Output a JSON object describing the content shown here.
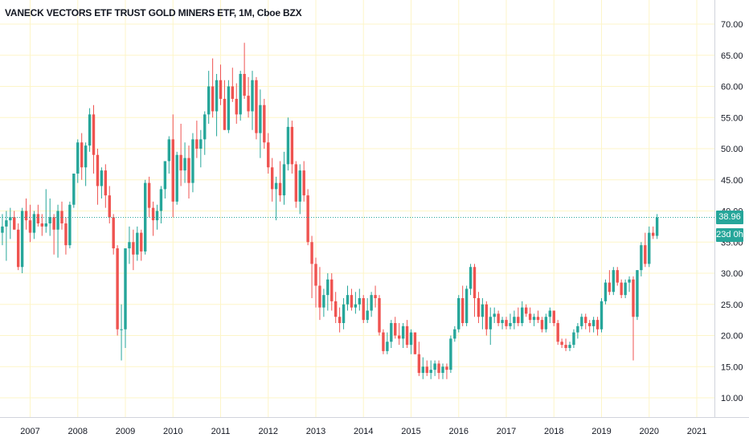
{
  "header": {
    "title": "VANECK VECTORS ETF TRUST GOLD MINERS ETF, 1M, Cboe BZX"
  },
  "last_price_label": "38.96",
  "countdown_label": "23d 0h",
  "colors": {
    "up": "#26a69a",
    "down": "#ef5350",
    "grid": "#fdf5c8",
    "axis_text": "#131722",
    "price_line": "#26a69a"
  },
  "chart_data": {
    "type": "candlestick",
    "title": "VANECK VECTORS ETF TRUST GOLD MINERS ETF, 1M, Cboe BZX",
    "interval": "1M",
    "ylim": [
      7,
      72
    ],
    "y_ticks": [
      10,
      15,
      20,
      25,
      30,
      35,
      40,
      45,
      50,
      55,
      60,
      65,
      70
    ],
    "y_tick_labels": [
      "10.00",
      "15.00",
      "20.00",
      "25.00",
      "30.00",
      "35.00",
      "40.00",
      "45.00",
      "50.00",
      "55.00",
      "60.00",
      "65.00",
      "70.00"
    ],
    "x_ticks": [
      "2007",
      "2008",
      "2009",
      "2010",
      "2011",
      "2012",
      "2013",
      "2014",
      "2015",
      "2016",
      "2017",
      "2018",
      "2019",
      "2020",
      "2021"
    ],
    "last_price": 38.96,
    "grid": true,
    "first_date": "2006-06",
    "candles": [
      [
        36.5,
        39.5,
        34.5,
        37.5
      ],
      [
        37.5,
        40.0,
        32.0,
        38.5
      ],
      [
        38.5,
        40.5,
        35.5,
        39.0
      ],
      [
        39.0,
        40.0,
        37.0,
        37.0
      ],
      [
        37.0,
        38.0,
        30.5,
        31.0
      ],
      [
        31.0,
        40.5,
        30.0,
        40.0
      ],
      [
        40.0,
        42.0,
        37.0,
        38.5
      ],
      [
        38.5,
        41.0,
        35.0,
        36.5
      ],
      [
        36.5,
        40.0,
        35.5,
        39.5
      ],
      [
        39.5,
        41.0,
        37.5,
        38.0
      ],
      [
        38.0,
        39.5,
        36.0,
        37.5
      ],
      [
        37.5,
        43.5,
        36.5,
        38.0
      ],
      [
        38.0,
        42.0,
        36.0,
        39.0
      ],
      [
        39.0,
        39.5,
        33.0,
        37.0
      ],
      [
        37.0,
        41.0,
        32.5,
        40.0
      ],
      [
        40.0,
        41.5,
        37.0,
        38.0
      ],
      [
        38.0,
        39.0,
        33.0,
        34.5
      ],
      [
        34.5,
        41.5,
        34.0,
        41.0
      ],
      [
        41.0,
        46.0,
        40.5,
        46.0
      ],
      [
        46.0,
        51.5,
        44.5,
        51.0
      ],
      [
        51.0,
        52.5,
        45.0,
        47.0
      ],
      [
        47.0,
        51.0,
        44.0,
        50.5
      ],
      [
        50.5,
        56.5,
        49.5,
        55.5
      ],
      [
        55.5,
        57.0,
        46.0,
        49.0
      ],
      [
        49.0,
        50.0,
        41.0,
        44.0
      ],
      [
        44.0,
        47.0,
        42.0,
        46.5
      ],
      [
        46.5,
        47.5,
        40.5,
        42.5
      ],
      [
        42.5,
        44.0,
        38.0,
        39.0
      ],
      [
        39.0,
        39.5,
        33.0,
        34.0
      ],
      [
        34.0,
        34.5,
        20.0,
        21.0
      ],
      [
        21.0,
        25.0,
        16.0,
        21.0
      ],
      [
        21.0,
        34.0,
        18.0,
        34.0
      ],
      [
        34.0,
        37.5,
        31.5,
        35.0
      ],
      [
        35.0,
        37.0,
        30.5,
        33.0
      ],
      [
        33.0,
        37.5,
        32.0,
        36.5
      ],
      [
        36.5,
        37.0,
        32.0,
        33.5
      ],
      [
        33.5,
        45.0,
        33.0,
        44.5
      ],
      [
        44.5,
        45.5,
        39.0,
        40.5
      ],
      [
        40.5,
        41.5,
        36.0,
        38.5
      ],
      [
        38.5,
        41.0,
        37.0,
        40.0
      ],
      [
        40.0,
        44.0,
        38.0,
        43.5
      ],
      [
        43.5,
        48.0,
        42.0,
        48.0
      ],
      [
        48.0,
        52.0,
        46.0,
        51.5
      ],
      [
        51.5,
        55.5,
        39.0,
        41.5
      ],
      [
        41.5,
        49.5,
        41.0,
        49.0
      ],
      [
        49.0,
        54.0,
        44.0,
        46.5
      ],
      [
        46.5,
        51.0,
        44.5,
        48.5
      ],
      [
        48.5,
        50.5,
        42.0,
        44.5
      ],
      [
        44.5,
        52.5,
        43.0,
        51.5
      ],
      [
        51.5,
        54.5,
        48.5,
        50.0
      ],
      [
        50.0,
        53.0,
        47.0,
        51.5
      ],
      [
        51.5,
        56.0,
        49.0,
        55.5
      ],
      [
        55.5,
        62.5,
        54.0,
        60.0
      ],
      [
        60.0,
        64.5,
        55.0,
        56.0
      ],
      [
        56.0,
        62.0,
        52.0,
        61.0
      ],
      [
        61.0,
        63.5,
        57.0,
        58.0
      ],
      [
        58.0,
        61.0,
        53.0,
        53.0
      ],
      [
        53.0,
        61.0,
        52.5,
        60.0
      ],
      [
        60.0,
        63.0,
        57.5,
        58.0
      ],
      [
        58.0,
        60.5,
        54.0,
        55.5
      ],
      [
        55.5,
        62.5,
        54.5,
        62.0
      ],
      [
        62.0,
        67.0,
        58.0,
        58.5
      ],
      [
        58.5,
        61.5,
        55.0,
        56.0
      ],
      [
        56.0,
        62.5,
        53.0,
        61.0
      ],
      [
        61.0,
        61.5,
        51.5,
        52.5
      ],
      [
        52.5,
        59.5,
        48.5,
        57.0
      ],
      [
        57.0,
        58.0,
        50.0,
        51.0
      ],
      [
        51.0,
        52.5,
        46.0,
        47.0
      ],
      [
        47.0,
        48.5,
        41.5,
        43.5
      ],
      [
        43.5,
        45.5,
        38.5,
        44.5
      ],
      [
        44.5,
        48.0,
        41.5,
        42.5
      ],
      [
        42.5,
        49.5,
        41.0,
        47.5
      ],
      [
        47.5,
        55.0,
        46.5,
        53.5
      ],
      [
        53.5,
        54.5,
        46.0,
        47.5
      ],
      [
        47.5,
        48.0,
        40.5,
        41.5
      ],
      [
        41.5,
        47.5,
        39.5,
        46.5
      ],
      [
        46.5,
        48.0,
        41.5,
        42.5
      ],
      [
        42.5,
        43.5,
        34.5,
        35.0
      ],
      [
        35.0,
        36.0,
        26.0,
        31.5
      ],
      [
        31.5,
        32.5,
        24.5,
        28.0
      ],
      [
        28.0,
        31.0,
        22.5,
        24.5
      ],
      [
        24.5,
        27.5,
        23.0,
        26.5
      ],
      [
        26.5,
        30.0,
        24.0,
        29.0
      ],
      [
        29.0,
        30.0,
        24.0,
        25.5
      ],
      [
        25.5,
        27.0,
        22.0,
        23.0
      ],
      [
        23.0,
        24.5,
        20.5,
        22.0
      ],
      [
        22.0,
        26.0,
        21.0,
        25.0
      ],
      [
        25.0,
        28.0,
        24.0,
        26.5
      ],
      [
        26.5,
        27.5,
        24.0,
        24.5
      ],
      [
        24.5,
        27.0,
        23.5,
        25.0
      ],
      [
        25.0,
        27.5,
        24.0,
        26.0
      ],
      [
        26.0,
        26.5,
        22.0,
        22.5
      ],
      [
        22.5,
        26.0,
        22.0,
        24.0
      ],
      [
        24.0,
        27.0,
        23.0,
        26.5
      ],
      [
        26.5,
        28.0,
        24.5,
        26.0
      ],
      [
        26.0,
        26.5,
        20.0,
        20.5
      ],
      [
        20.5,
        21.0,
        17.0,
        17.5
      ],
      [
        17.5,
        20.5,
        17.0,
        19.0
      ],
      [
        19.0,
        22.5,
        18.0,
        22.0
      ],
      [
        22.0,
        23.0,
        19.5,
        20.0
      ],
      [
        20.0,
        22.0,
        18.5,
        19.5
      ],
      [
        19.5,
        22.0,
        18.0,
        21.5
      ],
      [
        21.5,
        22.5,
        18.0,
        18.5
      ],
      [
        18.5,
        21.0,
        17.0,
        20.5
      ],
      [
        20.5,
        20.5,
        17.0,
        17.0
      ],
      [
        17.0,
        19.0,
        13.5,
        14.0
      ],
      [
        14.0,
        16.5,
        13.0,
        15.0
      ],
      [
        15.0,
        16.0,
        13.5,
        14.0
      ],
      [
        14.0,
        16.0,
        13.0,
        14.5
      ],
      [
        14.5,
        16.0,
        13.5,
        15.5
      ],
      [
        15.5,
        16.0,
        13.0,
        14.0
      ],
      [
        14.0,
        15.5,
        13.0,
        15.0
      ],
      [
        15.0,
        15.5,
        13.0,
        14.5
      ],
      [
        14.5,
        20.0,
        14.0,
        19.5
      ],
      [
        19.5,
        21.5,
        19.0,
        21.0
      ],
      [
        21.0,
        26.5,
        20.5,
        26.0
      ],
      [
        26.0,
        28.0,
        21.5,
        22.0
      ],
      [
        22.0,
        28.0,
        21.5,
        27.5
      ],
      [
        27.5,
        31.5,
        26.5,
        31.0
      ],
      [
        31.0,
        31.5,
        23.0,
        26.0
      ],
      [
        26.0,
        27.0,
        22.0,
        23.0
      ],
      [
        23.0,
        26.0,
        21.0,
        25.0
      ],
      [
        25.0,
        25.5,
        20.0,
        21.0
      ],
      [
        21.0,
        24.5,
        18.5,
        23.0
      ],
      [
        23.0,
        24.5,
        22.0,
        23.5
      ],
      [
        23.5,
        24.0,
        21.5,
        22.0
      ],
      [
        22.0,
        23.0,
        21.0,
        22.5
      ],
      [
        22.5,
        23.0,
        21.0,
        21.5
      ],
      [
        21.5,
        23.5,
        21.0,
        22.0
      ],
      [
        22.0,
        24.0,
        21.0,
        23.0
      ],
      [
        23.0,
        24.5,
        21.5,
        22.0
      ],
      [
        22.0,
        25.5,
        21.5,
        24.5
      ],
      [
        24.5,
        25.0,
        23.0,
        23.5
      ],
      [
        23.5,
        24.5,
        22.0,
        22.5
      ],
      [
        22.5,
        23.5,
        21.5,
        23.0
      ],
      [
        23.0,
        24.0,
        22.0,
        22.5
      ],
      [
        22.5,
        23.0,
        20.5,
        21.0
      ],
      [
        21.0,
        23.5,
        20.5,
        23.0
      ],
      [
        23.0,
        24.5,
        22.0,
        24.0
      ],
      [
        24.0,
        24.0,
        21.5,
        22.0
      ],
      [
        22.0,
        22.5,
        18.5,
        19.0
      ],
      [
        19.0,
        19.5,
        18.0,
        18.5
      ],
      [
        18.5,
        19.5,
        17.5,
        18.0
      ],
      [
        18.0,
        19.0,
        17.5,
        18.5
      ],
      [
        18.5,
        21.0,
        18.0,
        20.5
      ],
      [
        20.5,
        22.0,
        19.5,
        21.5
      ],
      [
        21.5,
        23.5,
        21.0,
        23.0
      ],
      [
        23.0,
        23.5,
        21.0,
        22.0
      ],
      [
        22.0,
        22.5,
        20.5,
        21.5
      ],
      [
        21.5,
        23.0,
        20.5,
        22.5
      ],
      [
        22.5,
        23.0,
        20.0,
        21.0
      ],
      [
        21.0,
        26.0,
        20.5,
        25.5
      ],
      [
        25.5,
        29.0,
        25.0,
        28.5
      ],
      [
        28.5,
        30.5,
        26.5,
        27.0
      ],
      [
        27.0,
        31.0,
        26.5,
        30.5
      ],
      [
        30.5,
        31.0,
        28.0,
        28.5
      ],
      [
        28.5,
        29.0,
        26.0,
        26.5
      ],
      [
        26.5,
        29.0,
        26.0,
        28.5
      ],
      [
        28.5,
        29.5,
        27.0,
        29.0
      ],
      [
        29.0,
        29.5,
        16.0,
        23.0
      ],
      [
        23.0,
        30.5,
        22.5,
        30.5
      ],
      [
        30.5,
        35.0,
        29.5,
        34.5
      ],
      [
        34.5,
        36.5,
        31.0,
        31.5
      ],
      [
        31.5,
        37.5,
        31.0,
        36.5
      ],
      [
        36.5,
        37.5,
        35.5,
        36.0
      ],
      [
        36.0,
        39.5,
        35.5,
        38.96
      ]
    ]
  }
}
